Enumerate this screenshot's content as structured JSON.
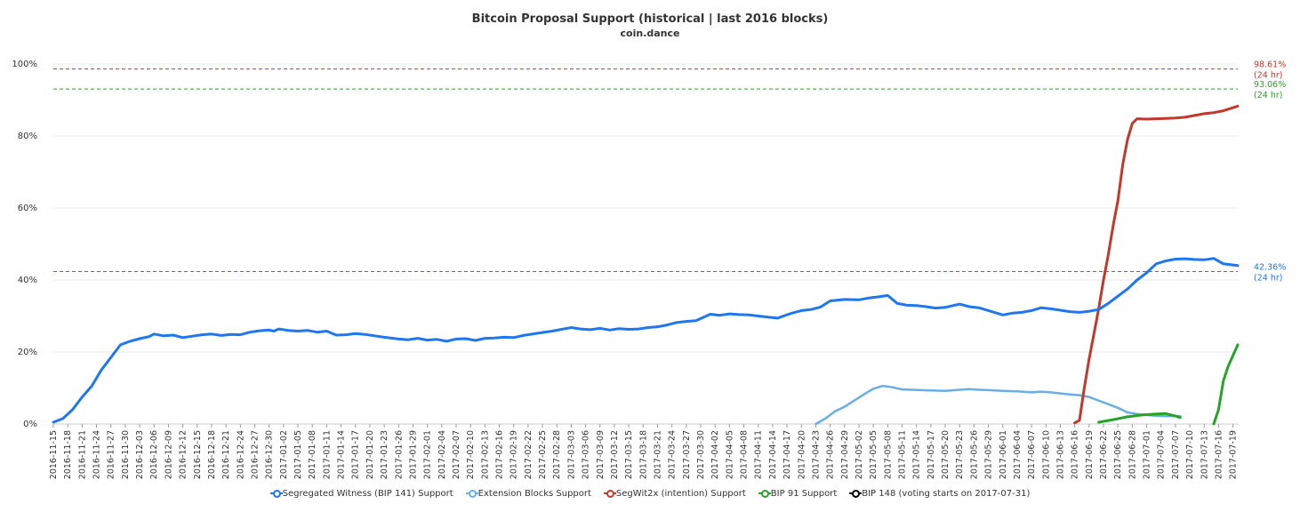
{
  "chart_data": {
    "type": "line",
    "title": "Bitcoin Proposal Support (historical | last 2016 blocks)",
    "subtitle": "coin.dance",
    "x_start": "2016-11-15",
    "x_end": "2017-07-20",
    "x_tick_labels": [
      "2016-11-15",
      "2016-11-18",
      "2016-11-21",
      "2016-11-24",
      "2016-11-27",
      "2016-11-30",
      "2016-12-03",
      "2016-12-06",
      "2016-12-09",
      "2016-12-12",
      "2016-12-15",
      "2016-12-18",
      "2016-12-21",
      "2016-12-24",
      "2016-12-27",
      "2016-12-30",
      "2017-01-02",
      "2017-01-05",
      "2017-01-08",
      "2017-01-11",
      "2017-01-14",
      "2017-01-17",
      "2017-01-20",
      "2017-01-23",
      "2017-01-26",
      "2017-01-29",
      "2017-02-01",
      "2017-02-04",
      "2017-02-07",
      "2017-02-10",
      "2017-02-13",
      "2017-02-16",
      "2017-02-19",
      "2017-02-22",
      "2017-02-25",
      "2017-02-28",
      "2017-03-03",
      "2017-03-06",
      "2017-03-09",
      "2017-03-12",
      "2017-03-15",
      "2017-03-18",
      "2017-03-21",
      "2017-03-24",
      "2017-03-27",
      "2017-03-30",
      "2017-04-02",
      "2017-04-05",
      "2017-04-08",
      "2017-04-11",
      "2017-04-14",
      "2017-04-17",
      "2017-04-20",
      "2017-04-23",
      "2017-04-26",
      "2017-04-29",
      "2017-05-02",
      "2017-05-05",
      "2017-05-08",
      "2017-05-11",
      "2017-05-14",
      "2017-05-17",
      "2017-05-20",
      "2017-05-23",
      "2017-05-26",
      "2017-05-29",
      "2017-06-01",
      "2017-06-04",
      "2017-06-07",
      "2017-06-10",
      "2017-06-13",
      "2017-06-16",
      "2017-06-19",
      "2017-06-22",
      "2017-06-25",
      "2017-06-28",
      "2017-07-01",
      "2017-07-04",
      "2017-07-07",
      "2017-07-10",
      "2017-07-13",
      "2017-07-16",
      "2017-07-19"
    ],
    "y_ticks": [
      "0%",
      "20%",
      "40%",
      "60%",
      "80%",
      "100%"
    ],
    "ylim": [
      0,
      100
    ],
    "grid": true,
    "legend_position": "bottom",
    "series": [
      {
        "name": "Segregated Witness (BIP 141) Support",
        "color": "#1f77f0",
        "points": [
          [
            "2016-11-15",
            0.5
          ],
          [
            "2016-11-17",
            1.5
          ],
          [
            "2016-11-19",
            4.0
          ],
          [
            "2016-11-21",
            7.5
          ],
          [
            "2016-11-23",
            10.5
          ],
          [
            "2016-11-25",
            15.0
          ],
          [
            "2016-11-27",
            18.5
          ],
          [
            "2016-11-29",
            22.0
          ],
          [
            "2016-12-01",
            23.0
          ],
          [
            "2016-12-03",
            23.7
          ],
          [
            "2016-12-05",
            24.3
          ],
          [
            "2016-12-06",
            25.0
          ],
          [
            "2016-12-08",
            24.5
          ],
          [
            "2016-12-10",
            24.7
          ],
          [
            "2016-12-12",
            24.0
          ],
          [
            "2016-12-14",
            24.4
          ],
          [
            "2016-12-16",
            24.8
          ],
          [
            "2016-12-18",
            25.0
          ],
          [
            "2016-12-20",
            24.6
          ],
          [
            "2016-12-22",
            24.9
          ],
          [
            "2016-12-24",
            24.8
          ],
          [
            "2016-12-26",
            25.5
          ],
          [
            "2016-12-28",
            25.9
          ],
          [
            "2016-12-30",
            26.1
          ],
          [
            "2016-12-31",
            25.8
          ],
          [
            "2017-01-01",
            26.4
          ],
          [
            "2017-01-03",
            26.0
          ],
          [
            "2017-01-05",
            25.8
          ],
          [
            "2017-01-07",
            26.0
          ],
          [
            "2017-01-09",
            25.5
          ],
          [
            "2017-01-11",
            25.8
          ],
          [
            "2017-01-13",
            24.7
          ],
          [
            "2017-01-15",
            24.8
          ],
          [
            "2017-01-17",
            25.1
          ],
          [
            "2017-01-19",
            24.9
          ],
          [
            "2017-01-21",
            24.5
          ],
          [
            "2017-01-23",
            24.1
          ],
          [
            "2017-01-26",
            23.6
          ],
          [
            "2017-01-28",
            23.4
          ],
          [
            "2017-01-30",
            23.8
          ],
          [
            "2017-02-01",
            23.3
          ],
          [
            "2017-02-03",
            23.5
          ],
          [
            "2017-02-05",
            23.0
          ],
          [
            "2017-02-07",
            23.6
          ],
          [
            "2017-02-09",
            23.7
          ],
          [
            "2017-02-11",
            23.2
          ],
          [
            "2017-02-13",
            23.8
          ],
          [
            "2017-02-15",
            23.9
          ],
          [
            "2017-02-17",
            24.1
          ],
          [
            "2017-02-19",
            24.0
          ],
          [
            "2017-02-21",
            24.6
          ],
          [
            "2017-02-24",
            25.2
          ],
          [
            "2017-02-27",
            25.8
          ],
          [
            "2017-03-01",
            26.3
          ],
          [
            "2017-03-03",
            26.8
          ],
          [
            "2017-03-05",
            26.4
          ],
          [
            "2017-03-07",
            26.2
          ],
          [
            "2017-03-09",
            26.6
          ],
          [
            "2017-03-11",
            26.1
          ],
          [
            "2017-03-13",
            26.5
          ],
          [
            "2017-03-15",
            26.3
          ],
          [
            "2017-03-17",
            26.4
          ],
          [
            "2017-03-19",
            26.8
          ],
          [
            "2017-03-21",
            27.0
          ],
          [
            "2017-03-23",
            27.5
          ],
          [
            "2017-03-25",
            28.2
          ],
          [
            "2017-03-27",
            28.5
          ],
          [
            "2017-03-29",
            28.7
          ],
          [
            "2017-04-01",
            30.5
          ],
          [
            "2017-04-03",
            30.2
          ],
          [
            "2017-04-05",
            30.6
          ],
          [
            "2017-04-07",
            30.4
          ],
          [
            "2017-04-09",
            30.3
          ],
          [
            "2017-04-11",
            30.0
          ],
          [
            "2017-04-13",
            29.7
          ],
          [
            "2017-04-15",
            29.4
          ],
          [
            "2017-04-18",
            30.8
          ],
          [
            "2017-04-20",
            31.5
          ],
          [
            "2017-04-22",
            31.8
          ],
          [
            "2017-04-24",
            32.5
          ],
          [
            "2017-04-26",
            34.2
          ],
          [
            "2017-04-29",
            34.6
          ],
          [
            "2017-05-02",
            34.5
          ],
          [
            "2017-05-04",
            35.0
          ],
          [
            "2017-05-06",
            35.3
          ],
          [
            "2017-05-08",
            35.7
          ],
          [
            "2017-05-10",
            33.5
          ],
          [
            "2017-05-12",
            33.0
          ],
          [
            "2017-05-14",
            32.9
          ],
          [
            "2017-05-16",
            32.6
          ],
          [
            "2017-05-18",
            32.2
          ],
          [
            "2017-05-20",
            32.4
          ],
          [
            "2017-05-23",
            33.3
          ],
          [
            "2017-05-25",
            32.6
          ],
          [
            "2017-05-27",
            32.3
          ],
          [
            "2017-05-29",
            31.5
          ],
          [
            "2017-06-01",
            30.3
          ],
          [
            "2017-06-03",
            30.8
          ],
          [
            "2017-06-05",
            31.0
          ],
          [
            "2017-06-07",
            31.5
          ],
          [
            "2017-06-09",
            32.3
          ],
          [
            "2017-06-11",
            32.0
          ],
          [
            "2017-06-13",
            31.6
          ],
          [
            "2017-06-15",
            31.2
          ],
          [
            "2017-06-17",
            31.0
          ],
          [
            "2017-06-19",
            31.3
          ],
          [
            "2017-06-21",
            31.8
          ],
          [
            "2017-06-23",
            33.5
          ],
          [
            "2017-06-25",
            35.5
          ],
          [
            "2017-06-27",
            37.5
          ],
          [
            "2017-06-29",
            40.0
          ],
          [
            "2017-07-01",
            42.0
          ],
          [
            "2017-07-03",
            44.5
          ],
          [
            "2017-07-05",
            45.3
          ],
          [
            "2017-07-07",
            45.8
          ],
          [
            "2017-07-09",
            45.9
          ],
          [
            "2017-07-11",
            45.7
          ],
          [
            "2017-07-13",
            45.6
          ],
          [
            "2017-07-15",
            46.0
          ],
          [
            "2017-07-17",
            44.5
          ],
          [
            "2017-07-20",
            44.0
          ]
        ]
      },
      {
        "name": "Extension Blocks Support",
        "color": "#6aaee6",
        "points": [
          [
            "2017-04-23",
            0.0
          ],
          [
            "2017-04-25",
            1.5
          ],
          [
            "2017-04-27",
            3.5
          ],
          [
            "2017-04-29",
            4.8
          ],
          [
            "2017-05-01",
            6.5
          ],
          [
            "2017-05-03",
            8.2
          ],
          [
            "2017-05-05",
            9.8
          ],
          [
            "2017-05-07",
            10.6
          ],
          [
            "2017-05-09",
            10.2
          ],
          [
            "2017-05-11",
            9.6
          ],
          [
            "2017-05-13",
            9.5
          ],
          [
            "2017-05-15",
            9.4
          ],
          [
            "2017-05-17",
            9.3
          ],
          [
            "2017-05-20",
            9.2
          ],
          [
            "2017-05-23",
            9.5
          ],
          [
            "2017-05-25",
            9.7
          ],
          [
            "2017-05-27",
            9.5
          ],
          [
            "2017-05-29",
            9.4
          ],
          [
            "2017-06-01",
            9.2
          ],
          [
            "2017-06-03",
            9.1
          ],
          [
            "2017-06-05",
            9.0
          ],
          [
            "2017-06-07",
            8.8
          ],
          [
            "2017-06-09",
            9.0
          ],
          [
            "2017-06-11",
            8.8
          ],
          [
            "2017-06-13",
            8.5
          ],
          [
            "2017-06-15",
            8.2
          ],
          [
            "2017-06-17",
            8.0
          ],
          [
            "2017-06-19",
            7.5
          ],
          [
            "2017-06-21",
            6.5
          ],
          [
            "2017-06-23",
            5.5
          ],
          [
            "2017-06-25",
            4.5
          ],
          [
            "2017-06-27",
            3.2
          ],
          [
            "2017-06-29",
            2.8
          ],
          [
            "2017-07-01",
            2.5
          ],
          [
            "2017-07-03",
            2.3
          ],
          [
            "2017-07-05",
            2.2
          ],
          [
            "2017-07-08",
            2.2
          ]
        ]
      },
      {
        "name": "SegWit2x (intention) Support",
        "color": "#c0392b",
        "points": [
          [
            "2017-06-16",
            0.3
          ],
          [
            "2017-06-17",
            1.0
          ],
          [
            "2017-06-18",
            10.0
          ],
          [
            "2017-06-19",
            18.0
          ],
          [
            "2017-06-20",
            25.0
          ],
          [
            "2017-06-21",
            32.0
          ],
          [
            "2017-06-22",
            40.0
          ],
          [
            "2017-06-23",
            47.0
          ],
          [
            "2017-06-24",
            55.0
          ],
          [
            "2017-06-25",
            62.0
          ],
          [
            "2017-06-26",
            72.0
          ],
          [
            "2017-06-27",
            79.0
          ],
          [
            "2017-06-28",
            83.5
          ],
          [
            "2017-06-29",
            84.8
          ],
          [
            "2017-07-01",
            84.7
          ],
          [
            "2017-07-03",
            84.8
          ],
          [
            "2017-07-05",
            84.9
          ],
          [
            "2017-07-07",
            85.0
          ],
          [
            "2017-07-09",
            85.2
          ],
          [
            "2017-07-11",
            85.7
          ],
          [
            "2017-07-13",
            86.2
          ],
          [
            "2017-07-15",
            86.5
          ],
          [
            "2017-07-17",
            87.0
          ],
          [
            "2017-07-20",
            88.3
          ]
        ]
      },
      {
        "name": "BIP 91 Support",
        "color": "#27a327",
        "segments": [
          [
            [
              "2017-06-21",
              0.5
            ],
            [
              "2017-06-24",
              1.2
            ],
            [
              "2017-06-27",
              2.0
            ],
            [
              "2017-06-30",
              2.5
            ],
            [
              "2017-07-03",
              2.8
            ],
            [
              "2017-07-05",
              2.9
            ],
            [
              "2017-07-07",
              2.2
            ],
            [
              "2017-07-08",
              1.8
            ]
          ],
          [
            [
              "2017-07-15",
              0.0
            ],
            [
              "2017-07-16",
              4.0
            ],
            [
              "2017-07-17",
              12.0
            ],
            [
              "2017-07-18",
              16.0
            ],
            [
              "2017-07-20",
              22.0
            ]
          ]
        ]
      },
      {
        "name": "BIP 148 (voting starts on 2017-07-31)",
        "color": "#000000",
        "points": []
      }
    ],
    "reference_lines": [
      {
        "value": 98.61,
        "color": "#c0392b",
        "label": "98.61%",
        "sublabel": "(24 hr)"
      },
      {
        "value": 93.06,
        "color": "#27a327",
        "label": "93.06%",
        "sublabel": "(24 hr)"
      },
      {
        "value": 42.36,
        "color": "#1f77f0",
        "label": "42.36%",
        "sublabel": "(24 hr)"
      }
    ]
  }
}
